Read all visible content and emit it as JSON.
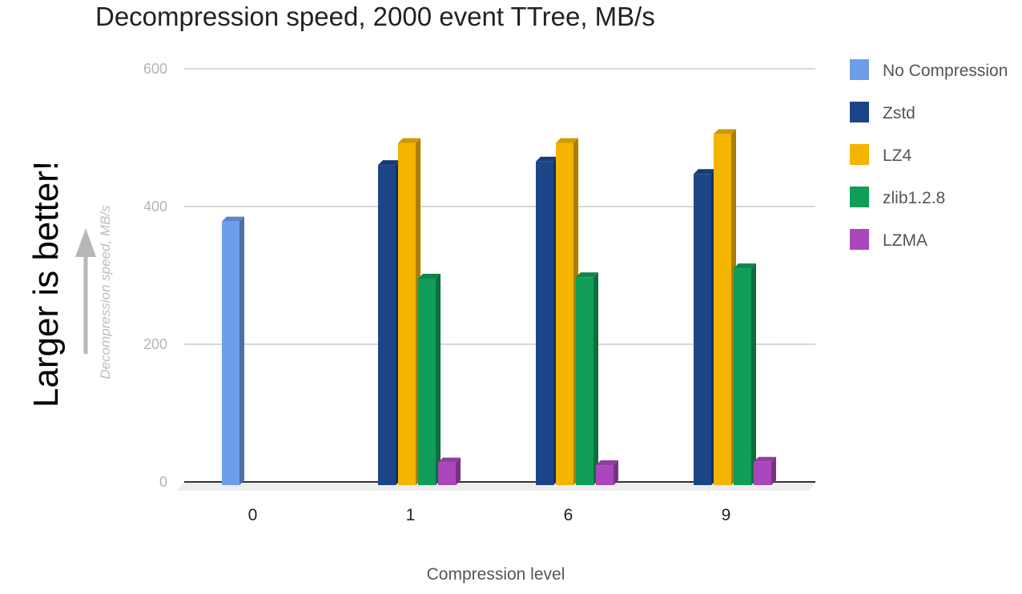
{
  "chart_data": {
    "type": "bar",
    "title": "Decompression speed, 2000 event TTree, MB/s",
    "xlabel": "Compression level",
    "ylabel": "Decompression speed, MB/s",
    "categories": [
      "0",
      "1",
      "6",
      "9"
    ],
    "ylim": [
      0,
      600
    ],
    "yticks": [
      "0",
      "200",
      "400",
      "600"
    ],
    "grid": true,
    "three_d": true,
    "legend_position": "right",
    "series": [
      {
        "name": "No Compression",
        "color": "#6d9eeb",
        "values": [
          383,
          null,
          null,
          null
        ]
      },
      {
        "name": "Zstd",
        "color": "#1c4587",
        "values": [
          null,
          465,
          470,
          452
        ]
      },
      {
        "name": "LZ4",
        "color": "#f4b400",
        "values": [
          null,
          497,
          497,
          510
        ]
      },
      {
        "name": "zlib1.2.8",
        "color": "#0f9d58",
        "values": [
          null,
          300,
          302,
          315
        ]
      },
      {
        "name": "LZMA",
        "color": "#ab47bc",
        "values": [
          null,
          33,
          29,
          34
        ]
      }
    ],
    "annotation": "Larger is better!"
  }
}
